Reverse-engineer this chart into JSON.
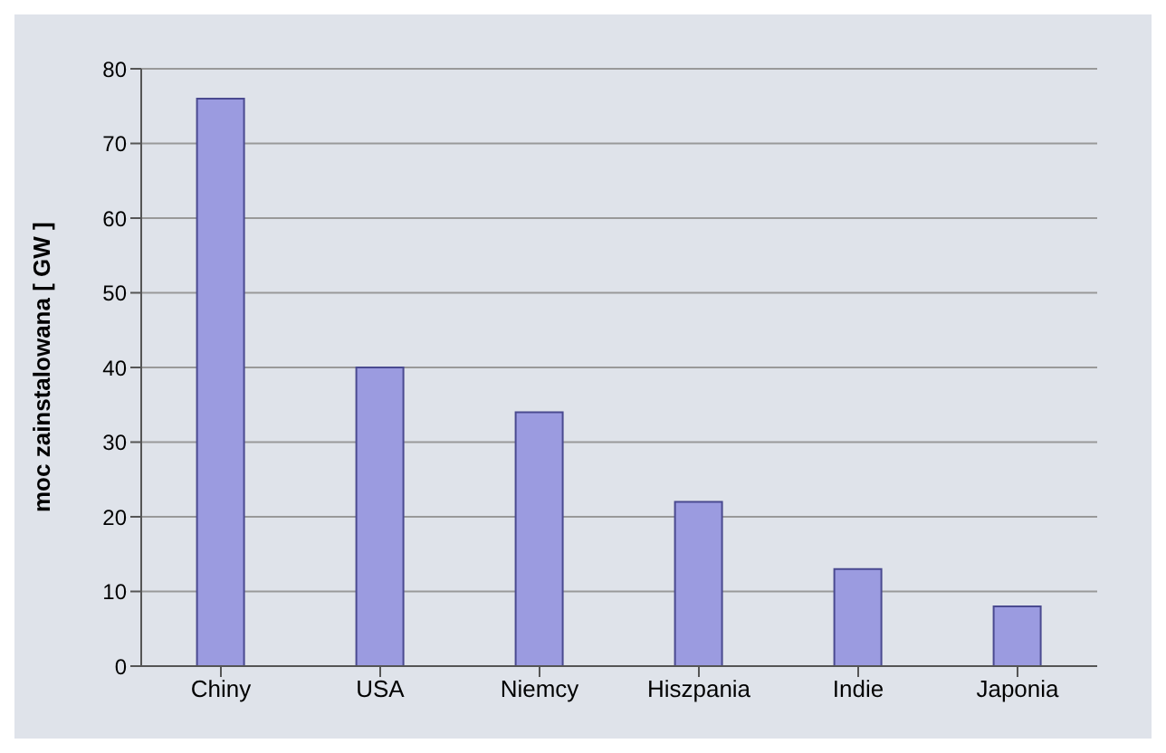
{
  "chart_data": {
    "type": "bar",
    "ylabel": "moc zainstalowana [ GW ]",
    "categories": [
      "Chiny",
      "USA",
      "Niemcy",
      "Hiszpania",
      "Indie",
      "Japonia"
    ],
    "values": [
      76,
      40,
      34,
      22,
      13,
      8
    ],
    "color": "#9b9be0",
    "ylim": [
      0,
      80
    ],
    "yticks": [
      0,
      10,
      20,
      30,
      40,
      50,
      60,
      70,
      80
    ],
    "grid": "y",
    "legend": false
  }
}
